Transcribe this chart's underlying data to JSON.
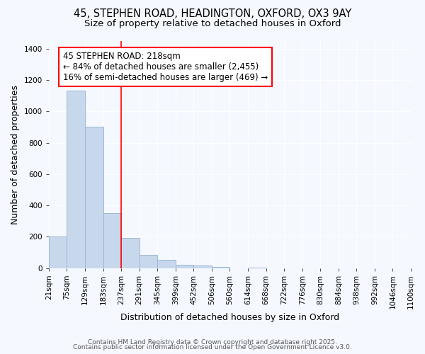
{
  "title_line1": "45, STEPHEN ROAD, HEADINGTON, OXFORD, OX3 9AY",
  "title_line2": "Size of property relative to detached houses in Oxford",
  "xlabel": "Distribution of detached houses by size in Oxford",
  "ylabel": "Number of detached properties",
  "bin_labels": [
    "21sqm",
    "75sqm",
    "129sqm",
    "183sqm",
    "237sqm",
    "291sqm",
    "345sqm",
    "399sqm",
    "452sqm",
    "506sqm",
    "560sqm",
    "614sqm",
    "668sqm",
    "722sqm",
    "776sqm",
    "830sqm",
    "884sqm",
    "938sqm",
    "992sqm",
    "1046sqm",
    "1100sqm"
  ],
  "bar_heights": [
    200,
    1130,
    900,
    350,
    195,
    85,
    55,
    20,
    15,
    10,
    0,
    5,
    0,
    0,
    0,
    0,
    0,
    0,
    0,
    0
  ],
  "bar_color": "#c8d8ec",
  "bar_edge_color": "#9ab8d4",
  "red_line_bin": 4,
  "annotation_text": "45 STEPHEN ROAD: 218sqm\n← 84% of detached houses are smaller (2,455)\n16% of semi-detached houses are larger (469) →",
  "annotation_box_color": "white",
  "annotation_box_edge": "red",
  "ylim": [
    0,
    1450
  ],
  "yticks": [
    0,
    200,
    400,
    600,
    800,
    1000,
    1200,
    1400
  ],
  "footer_line1": "Contains HM Land Registry data © Crown copyright and database right 2025.",
  "footer_line2": "Contains public sector information licensed under the Open Government Licence v3.0.",
  "fig_background_color": "#f5f8ff",
  "plot_background_color": "#f5f8ff",
  "grid_color": "white",
  "title_fontsize": 10.5,
  "subtitle_fontsize": 9.5,
  "axis_label_fontsize": 9,
  "tick_fontsize": 7.5,
  "annotation_fontsize": 8.5,
  "footer_fontsize": 6.5
}
